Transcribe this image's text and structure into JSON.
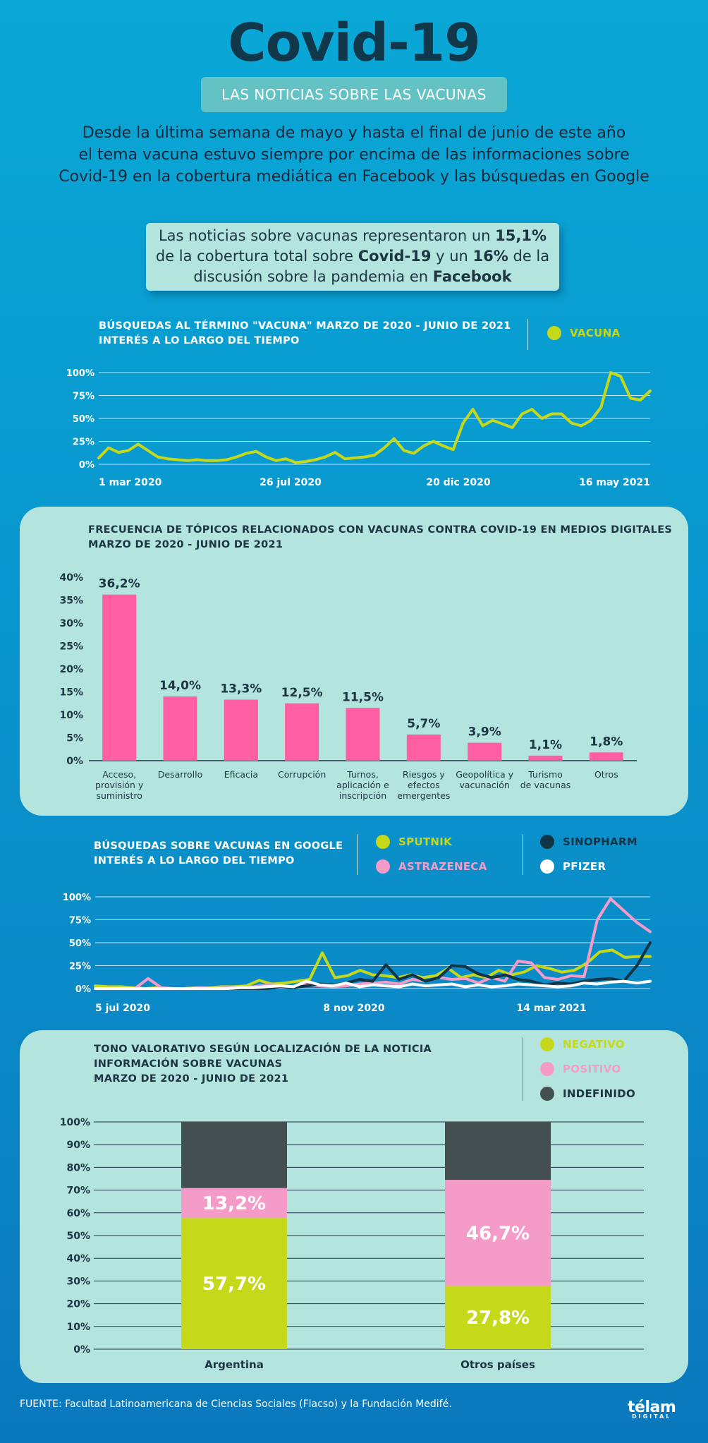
{
  "header": {
    "title": "Covid-19",
    "subtitle": "LAS NOTICIAS SOBRE LAS VACUNAS",
    "intro": [
      "Desde la última semana de mayo y hasta el final de junio de este año",
      "el tema vacuna estuvo siempre por encima de las informaciones sobre",
      "Covid-19 en la cobertura mediática en Facebook y las búsquedas en Google"
    ]
  },
  "callout": {
    "l1a": "Las noticias sobre vacunas representaron un ",
    "l1b": "15,1%",
    "l2a": "de la cobertura total sobre ",
    "l2b": "Covid-19",
    "l2c": " y un ",
    "l2d": "16%",
    "l2e": " de la",
    "l3a": "discusión sobre la pandemia en ",
    "l3b": "Facebook"
  },
  "colors": {
    "lime": "#c5d81a",
    "pink": "#ff5fa2",
    "lightpink": "#f59bc8",
    "navy": "#0f3546",
    "gray": "#444f52",
    "panel": "#b3e5de"
  },
  "chart_data": [
    {
      "id": "vacuna",
      "type": "line",
      "title": "BÚSQUEDAS AL TÉRMINO \"VACUNA\" MARZO DE 2020 - JUNIO DE  2021",
      "subtitle": "INTERÉS A LO LARGO DEL TIEMPO",
      "legend": [
        {
          "name": "VACUNA",
          "color": "#c5d81a"
        }
      ],
      "ylim": [
        0,
        100
      ],
      "yticks": [
        "100%",
        "75%",
        "50%",
        "25%",
        "0%"
      ],
      "xticks": [
        "1 mar 2020",
        "26 jul 2020",
        "20 dic 2020",
        "16 may 2021"
      ],
      "series": [
        {
          "name": "VACUNA",
          "color": "#c5d81a",
          "values": [
            7,
            18,
            13,
            15,
            22,
            15,
            8,
            6,
            5,
            4,
            5,
            4,
            4,
            5,
            8,
            12,
            14,
            8,
            4,
            6,
            2,
            3,
            5,
            8,
            13,
            6,
            7,
            8,
            10,
            18,
            28,
            15,
            12,
            20,
            25,
            20,
            16,
            45,
            60,
            42,
            48,
            44,
            40,
            55,
            60,
            50,
            55,
            55,
            45,
            42,
            48,
            62,
            100,
            96,
            72,
            70,
            80
          ]
        }
      ]
    },
    {
      "id": "topicos",
      "type": "bar",
      "title": "FRECUENCIA DE TÓPICOS RELACIONADOS CON VACUNAS CONTRA COVID-19 EN MEDIOS DIGITALES",
      "subtitle": "MARZO DE 2020 - JUNIO DE 2021",
      "ylim": [
        0,
        40
      ],
      "yticks": [
        "40%",
        "35%",
        "30%",
        "25%",
        "20%",
        "15%",
        "10%",
        "5%",
        "0%"
      ],
      "categories": [
        "Acceso, provisión y suministro",
        "Desarrollo",
        "Eficacia",
        "Corrupción",
        "Turnos, aplicación e inscripción",
        "Riesgos y efectos emergentes",
        "Geopolítica y vacunación",
        "Turismo de vacunas",
        "Otros"
      ],
      "category_lines": [
        [
          "Acceso,",
          "provisión y",
          "suministro"
        ],
        [
          "Desarrollo"
        ],
        [
          "Eficacia"
        ],
        [
          "Corrupción"
        ],
        [
          "Turnos,",
          "aplicación e",
          "inscripción"
        ],
        [
          "Riesgos y",
          "efectos",
          "emergentes"
        ],
        [
          "Geopolítica y",
          "vacunación"
        ],
        [
          "Turismo",
          "de vacunas"
        ],
        [
          "Otros"
        ]
      ],
      "values": [
        36.2,
        14.0,
        13.3,
        12.5,
        11.5,
        5.7,
        3.9,
        1.1,
        1.8
      ],
      "labels": [
        "36,2%",
        "14,0%",
        "13,3%",
        "12,5%",
        "11,5%",
        "5,7%",
        "3,9%",
        "1,1%",
        "1,8%"
      ],
      "color": "#ff5fa2"
    },
    {
      "id": "marcas",
      "type": "line",
      "title": "BÚSQUEDAS SOBRE VACUNAS EN GOOGLE",
      "subtitle": "INTERÉS A LO LARGO DEL TIEMPO",
      "legend": [
        {
          "name": "SPUTNIK",
          "color": "#c5d81a"
        },
        {
          "name": "ASTRAZENECA",
          "color": "#f59bc8"
        },
        {
          "name": "SINOPHARM",
          "color": "#0f3546"
        },
        {
          "name": "PFIZER",
          "color": "#ffffff"
        }
      ],
      "ylim": [
        0,
        100
      ],
      "yticks": [
        "100%",
        "75%",
        "50%",
        "25%",
        "0%"
      ],
      "xticks": [
        "5 jul 2020",
        "8 nov 2020",
        "14 mar 2021"
      ],
      "series": [
        {
          "name": "SPUTNIK",
          "color": "#c5d81a",
          "values": [
            3,
            2,
            2,
            1,
            0,
            1,
            0,
            0,
            1,
            1,
            2,
            2,
            3,
            9,
            5,
            6,
            8,
            10,
            39,
            12,
            14,
            20,
            15,
            14,
            12,
            15,
            12,
            14,
            22,
            12,
            15,
            12,
            20,
            15,
            18,
            25,
            22,
            18,
            20,
            28,
            40,
            42,
            34,
            35,
            35
          ]
        },
        {
          "name": "ASTRAZENECA",
          "color": "#f59bc8",
          "values": [
            0,
            0,
            0,
            0,
            11,
            1,
            0,
            0,
            1,
            0,
            1,
            1,
            2,
            4,
            3,
            2,
            4,
            3,
            2,
            3,
            5,
            6,
            7,
            5,
            10,
            8,
            12,
            10,
            11,
            6,
            12,
            8,
            30,
            28,
            12,
            10,
            14,
            13,
            75,
            98,
            85,
            72,
            62
          ]
        },
        {
          "name": "SINOPHARM",
          "color": "#0f3546",
          "values": [
            0,
            0,
            0,
            0,
            0,
            0,
            0,
            0,
            0,
            0,
            0,
            0,
            0,
            0,
            2,
            1,
            3,
            5,
            4,
            6,
            10,
            8,
            26,
            10,
            15,
            8,
            12,
            25,
            24,
            16,
            12,
            15,
            10,
            8,
            4,
            6,
            5,
            8,
            10,
            11,
            8,
            25,
            50
          ]
        },
        {
          "name": "PFIZER",
          "color": "#ffffff",
          "values": [
            0,
            0,
            0,
            0,
            0,
            0,
            0,
            0,
            0,
            0,
            0,
            1,
            1,
            2,
            3,
            2,
            8,
            4,
            3,
            6,
            2,
            4,
            3,
            2,
            5,
            3,
            4,
            5,
            2,
            4,
            2,
            3,
            5,
            4,
            3,
            2,
            3,
            6,
            5,
            7,
            8,
            6,
            8
          ]
        }
      ]
    },
    {
      "id": "tono",
      "type": "bar",
      "stacked": true,
      "title": "TONO VALORATIVO SEGÚN LOCALIZACIÓN DE LA NOTICIA",
      "subtitle": "INFORMACIÓN SOBRE VACUNAS",
      "subtitle2": " MARZO DE 2020 - JUNIO DE  2021",
      "legend": [
        {
          "name": "NEGATIVO",
          "color": "#c5d81a"
        },
        {
          "name": "POSITIVO",
          "color": "#f59bc8"
        },
        {
          "name": "INDEFINIDO",
          "color": "#444f52"
        }
      ],
      "ylim": [
        0,
        100
      ],
      "yticks": [
        "100%",
        "90%",
        "80%",
        "70%",
        "60%",
        "50%",
        "40%",
        "30%",
        "20%",
        "10%",
        "0%"
      ],
      "categories": [
        "Argentina",
        "Otros países"
      ],
      "series": [
        {
          "name": "NEGATIVO",
          "color": "#c5d81a",
          "values": [
            57.7,
            27.8
          ],
          "labels": [
            "57,7%",
            "27,8%"
          ]
        },
        {
          "name": "POSITIVO",
          "color": "#f59bc8",
          "values": [
            13.2,
            46.7
          ],
          "labels": [
            "13,2%",
            "46,7%"
          ]
        },
        {
          "name": "INDEFINIDO",
          "color": "#444f52",
          "values": [
            29.1,
            25.5
          ],
          "labels": [
            "",
            ""
          ]
        }
      ]
    }
  ],
  "footer": {
    "source": "FUENTE: Facultad Latinoamericana de Ciencias Sociales (Flacso) y la Fundación Medifé.",
    "logo": "télam",
    "logo_sub": "DIGITAL"
  }
}
